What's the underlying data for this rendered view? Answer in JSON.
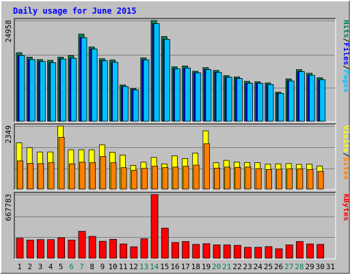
{
  "chart_data": {
    "type": "bar",
    "title": "Daily usage for June 2015",
    "days": [
      "1",
      "2",
      "3",
      "4",
      "5",
      "6",
      "7",
      "8",
      "9",
      "10",
      "11",
      "12",
      "13",
      "14",
      "15",
      "16",
      "17",
      "18",
      "19",
      "20",
      "21",
      "22",
      "23",
      "24",
      "25",
      "26",
      "27",
      "28",
      "29",
      "30",
      "31"
    ],
    "weekend_days": [
      "6",
      "7",
      "13",
      "14",
      "20",
      "21",
      "27",
      "28"
    ],
    "panels": [
      {
        "max_label": "24958",
        "max_value": 24958,
        "series": [
          {
            "name": "Hits",
            "color": "#00805c",
            "values": [
              17000,
              15900,
              15300,
              15100,
              15900,
              16300,
              21600,
              18400,
              15500,
              15200,
              9000,
              8100,
              15700,
              24958,
              21000,
              13500,
              13700,
              12400,
              13300,
              12600,
              11300,
              11000,
              9900,
              9800,
              9500,
              7200,
              10500,
              12800,
              11900,
              10800
            ]
          },
          {
            "name": "Files",
            "color": "#0000ff",
            "values": [
              16300,
              15300,
              14800,
              14500,
              15400,
              15600,
              20700,
              17900,
              15000,
              14600,
              8600,
              7800,
              15200,
              24200,
              20300,
              13000,
              13200,
              12000,
              12800,
              12100,
              10900,
              10600,
              9400,
              9400,
              9100,
              6900,
              10000,
              12300,
              11400,
              10300
            ]
          },
          {
            "name": "Pages",
            "color": "#00c0ff",
            "values": [
              16300,
              15300,
              14800,
              14500,
              15400,
              15600,
              20700,
              17900,
              15000,
              14600,
              8600,
              7800,
              15200,
              24200,
              20300,
              13000,
              13200,
              12000,
              12800,
              12100,
              10900,
              10600,
              9400,
              9400,
              9100,
              6900,
              10000,
              12300,
              11400,
              10300
            ]
          }
        ],
        "side_labels": [
          {
            "text": "Hits",
            "color": "#00805c"
          },
          {
            "text": "Files",
            "color": "#0000ff"
          },
          {
            "text": "Pages",
            "color": "#00c0ff"
          }
        ]
      },
      {
        "max_label": "2349",
        "max_value": 2349,
        "series": [
          {
            "name": "Visits",
            "color": "#ffff00",
            "values": [
              1720,
              1540,
              1380,
              1380,
              2349,
              1460,
              1460,
              1460,
              1650,
              1370,
              1270,
              880,
              1000,
              1180,
              940,
              1240,
              1140,
              1340,
              2170,
              980,
              1070,
              1010,
              990,
              980,
              930,
              940,
              950,
              920,
              930,
              860
            ]
          },
          {
            "name": "Sites",
            "color": "#ff8000",
            "values": [
              1050,
              960,
              950,
              990,
              1930,
              940,
              1000,
              980,
              1210,
              980,
              800,
              700,
              770,
              850,
              800,
              820,
              850,
              890,
              1690,
              780,
              820,
              810,
              820,
              760,
              730,
              740,
              750,
              750,
              730,
              660
            ]
          }
        ],
        "side_labels": [
          {
            "text": "Visits",
            "color": "#ffff00"
          },
          {
            "text": "Sites",
            "color": "#ff8000"
          }
        ]
      },
      {
        "max_label": "667783",
        "max_value": 667783,
        "series": [
          {
            "name": "KBytes",
            "color": "#ff0000",
            "values": [
              210000,
              190000,
              195000,
              195000,
              215000,
              190000,
              282000,
              230000,
              178000,
              198000,
              150000,
              120000,
              205000,
              667783,
              315000,
              165000,
              175000,
              145000,
              152000,
              140000,
              140000,
              135000,
              115000,
              115000,
              122000,
              100000,
              140000,
              175000,
              150000,
              145000
            ]
          }
        ],
        "side_labels": [
          {
            "text": "KBytes",
            "color": "#ff0000"
          }
        ]
      }
    ]
  },
  "colors": {
    "title": "#0000ff",
    "weekday_label": "#000000",
    "weekend_label": "#00805c",
    "plot_bg": "#c0c0c0",
    "grid": "#808080",
    "label_separator": "#000000"
  }
}
